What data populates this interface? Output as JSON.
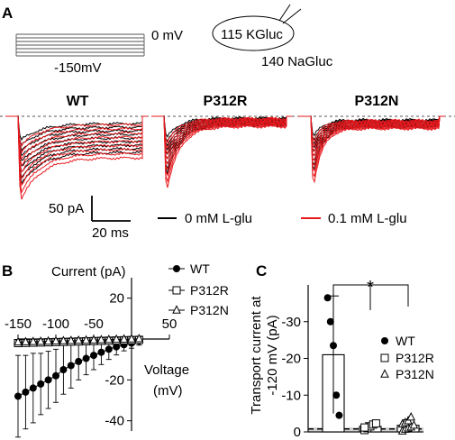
{
  "panels": {
    "a": {
      "letter": "A",
      "voltage_top": "0 mV",
      "voltage_bottom": "-150mV",
      "pipette_solution": "115 KGluc",
      "bath_solution": "140 NaGluc",
      "trace_titles": [
        "WT",
        "P312R",
        "P312N"
      ],
      "scale_current": "50 pA",
      "scale_time": "20 ms",
      "legend": [
        {
          "label": "0 mM L-glu",
          "color": "#000000"
        },
        {
          "label": "0.1 mM L-glu",
          "color": "#e8191e"
        }
      ]
    },
    "b": {
      "letter": "B",
      "y_title": "Current (pA)",
      "x_title_line1": "Voltage",
      "x_title_line2": "(mV)"
    },
    "c": {
      "letter": "C",
      "y_title_line1": "Transport current at",
      "y_title_line2": "-120 mV (pA)",
      "significance": "*"
    }
  },
  "chart_data": [
    {
      "type": "line",
      "panel": "B",
      "xlabel": "Voltage (mV)",
      "ylabel": "Current (pA)",
      "xlim": [
        -150,
        50
      ],
      "ylim": [
        -45,
        30
      ],
      "x_ticks": [
        -150,
        -100,
        -50,
        50
      ],
      "y_ticks": [
        20,
        -20,
        -40
      ],
      "x": [
        -150,
        -140,
        -130,
        -120,
        -110,
        -100,
        -90,
        -80,
        -70,
        -60,
        -50,
        -40,
        -30,
        -20,
        -10,
        0,
        10
      ],
      "series": [
        {
          "name": "WT",
          "marker": "filled-circle",
          "values": [
            -28,
            -26,
            -24,
            -22,
            -20,
            -18,
            -15,
            -13,
            -11,
            -9.5,
            -8,
            -6.5,
            -5,
            -3.8,
            -2.8,
            -2,
            -1
          ],
          "errors": [
            20,
            18,
            17,
            15,
            14,
            13,
            12,
            11,
            9,
            8,
            7,
            6,
            5,
            4,
            3,
            2.5,
            2
          ]
        },
        {
          "name": "P312R",
          "marker": "open-square",
          "values": [
            -2,
            -1.9,
            -1.8,
            -1.7,
            -1.6,
            -1.5,
            -1.4,
            -1.3,
            -1.2,
            -1.1,
            -1,
            -0.9,
            -0.8,
            -0.7,
            -0.6,
            -0.5,
            -0.4
          ],
          "errors": [
            1.5,
            1.5,
            1.4,
            1.4,
            1.3,
            1.3,
            1.2,
            1.2,
            1.1,
            1.1,
            1,
            1,
            1,
            1,
            1,
            1,
            1
          ]
        },
        {
          "name": "P312N",
          "marker": "open-triangle",
          "values": [
            -1.5,
            -1.4,
            -1.3,
            -1.2,
            -1.1,
            -1,
            -0.9,
            -0.8,
            -0.7,
            -0.6,
            -0.5,
            -0.4,
            -0.3,
            -0.2,
            -0.1,
            0,
            0.1
          ],
          "errors": [
            1,
            1,
            1,
            1,
            1,
            1,
            1,
            1,
            1,
            1,
            1,
            1,
            1,
            1,
            1,
            1,
            1
          ]
        }
      ],
      "legend": "top-right",
      "grid": false
    },
    {
      "type": "bar",
      "panel": "C",
      "ylabel": "Transport current at -120 mV (pA)",
      "ylim": [
        0,
        -40
      ],
      "y_ticks": [
        0,
        -10,
        -20,
        -30
      ],
      "categories": [
        "WT",
        "P312R",
        "P312N"
      ],
      "markers": [
        "filled-circle",
        "open-square",
        "open-triangle"
      ],
      "values": [
        -21,
        -1.5,
        -1.8
      ],
      "errors": [
        16,
        1,
        1.5
      ],
      "points": [
        [
          -36.5,
          -30,
          -23.5,
          -10,
          -4.5
        ],
        [
          -0.5,
          -1,
          -1.5,
          -2,
          -2.3,
          -1.2
        ],
        [
          -0.2,
          -0.7,
          -1,
          -1.3,
          -1.8,
          -2.1,
          -2.5,
          -3,
          -4
        ]
      ],
      "legend": "right",
      "grid": false
    }
  ]
}
